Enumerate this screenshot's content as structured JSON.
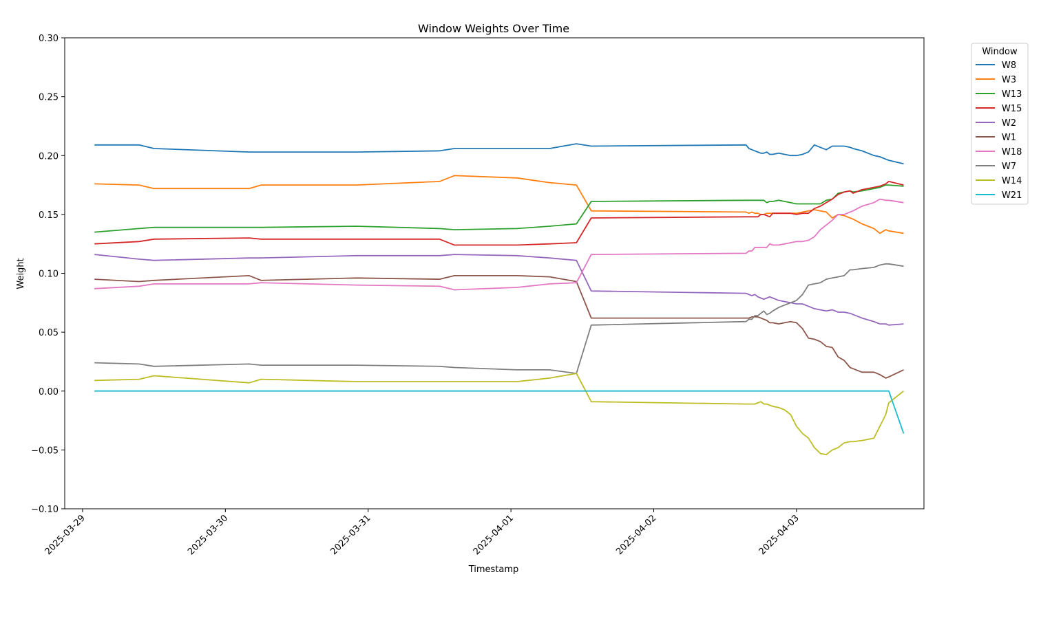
{
  "chart_data": {
    "type": "line",
    "title": "Window Weights Over Time",
    "xlabel": "Timestamp",
    "ylabel": "Weight",
    "ylim": [
      -0.1,
      0.3
    ],
    "xlim": [
      "2025-03-28T21:00",
      "2025-04-03T21:25"
    ],
    "yticks": [
      "−0.10",
      "−0.05",
      "0.00",
      "0.05",
      "0.10",
      "0.15",
      "0.20",
      "0.25",
      "0.30"
    ],
    "xticks": [
      "2025-03-29",
      "2025-03-30",
      "2025-03-31",
      "2025-04-01",
      "2025-04-02",
      "2025-04-03"
    ],
    "grid": false,
    "legend": {
      "title": "Window",
      "placement": "outside-top-right"
    },
    "x": [
      "2025-03-29T02:00",
      "2025-03-29T09:30",
      "2025-03-29T12:00",
      "2025-03-30T04:00",
      "2025-03-30T06:00",
      "2025-03-30T22:00",
      "2025-03-31T12:00",
      "2025-03-31T14:30",
      "2025-04-01T01:00",
      "2025-04-01T06:30",
      "2025-04-01T11:00",
      "2025-04-01T13:30",
      "2025-04-02T15:30",
      "2025-04-02T16:00",
      "2025-04-02T16:30",
      "2025-04-02T17:00",
      "2025-04-02T17:30",
      "2025-04-02T18:00",
      "2025-04-02T18:30",
      "2025-04-02T19:00",
      "2025-04-02T19:30",
      "2025-04-02T20:00",
      "2025-04-02T21:00",
      "2025-04-02T22:00",
      "2025-04-02T23:00",
      "2025-04-03T00:00",
      "2025-04-03T01:00",
      "2025-04-03T02:00",
      "2025-04-03T03:00",
      "2025-04-03T04:00",
      "2025-04-03T05:00",
      "2025-04-03T06:00",
      "2025-04-03T07:00",
      "2025-04-03T08:00",
      "2025-04-03T09:00",
      "2025-04-03T09:30",
      "2025-04-03T11:00",
      "2025-04-03T13:00",
      "2025-04-03T14:00",
      "2025-04-03T15:00",
      "2025-04-03T15:30",
      "2025-04-03T18:00"
    ],
    "series": [
      {
        "name": "W8",
        "color": "#1f77b4",
        "values": [
          0.209,
          0.209,
          0.206,
          0.203,
          0.203,
          0.203,
          0.204,
          0.206,
          0.206,
          0.206,
          0.21,
          0.208,
          0.209,
          0.206,
          0.205,
          0.204,
          0.203,
          0.202,
          0.202,
          0.203,
          0.201,
          0.201,
          0.202,
          0.201,
          0.2,
          0.2,
          0.201,
          0.203,
          0.209,
          0.207,
          0.205,
          0.208,
          0.208,
          0.208,
          0.207,
          0.206,
          0.204,
          0.2,
          0.199,
          0.197,
          0.196,
          0.193
        ]
      },
      {
        "name": "W3",
        "color": "#ff7f0e",
        "values": [
          0.176,
          0.175,
          0.172,
          0.172,
          0.175,
          0.175,
          0.178,
          0.183,
          0.181,
          0.177,
          0.175,
          0.153,
          0.152,
          0.151,
          0.152,
          0.151,
          0.151,
          0.15,
          0.15,
          0.151,
          0.151,
          0.151,
          0.151,
          0.151,
          0.151,
          0.151,
          0.152,
          0.153,
          0.154,
          0.153,
          0.152,
          0.147,
          0.15,
          0.149,
          0.147,
          0.146,
          0.142,
          0.138,
          0.134,
          0.137,
          0.136,
          0.134
        ]
      },
      {
        "name": "W13",
        "color": "#2ca02c",
        "values": [
          0.135,
          0.138,
          0.139,
          0.139,
          0.139,
          0.14,
          0.138,
          0.137,
          0.138,
          0.14,
          0.142,
          0.161,
          0.162,
          0.162,
          0.162,
          0.162,
          0.162,
          0.162,
          0.162,
          0.16,
          0.161,
          0.161,
          0.162,
          0.161,
          0.16,
          0.159,
          0.159,
          0.159,
          0.159,
          0.159,
          0.162,
          0.163,
          0.168,
          0.169,
          0.17,
          0.169,
          0.17,
          0.172,
          0.173,
          0.175,
          0.175,
          0.174
        ]
      },
      {
        "name": "W15",
        "color": "#d62728",
        "values": [
          0.125,
          0.127,
          0.129,
          0.13,
          0.129,
          0.129,
          0.129,
          0.124,
          0.124,
          0.125,
          0.126,
          0.147,
          0.148,
          0.148,
          0.148,
          0.148,
          0.148,
          0.15,
          0.15,
          0.149,
          0.148,
          0.151,
          0.151,
          0.151,
          0.151,
          0.15,
          0.151,
          0.151,
          0.155,
          0.157,
          0.16,
          0.163,
          0.167,
          0.169,
          0.17,
          0.168,
          0.171,
          0.173,
          0.174,
          0.176,
          0.178,
          0.175
        ]
      },
      {
        "name": "W2",
        "color": "#9467bd",
        "values": [
          0.116,
          0.112,
          0.111,
          0.113,
          0.113,
          0.115,
          0.115,
          0.116,
          0.115,
          0.113,
          0.111,
          0.085,
          0.083,
          0.082,
          0.081,
          0.082,
          0.08,
          0.079,
          0.078,
          0.079,
          0.08,
          0.079,
          0.077,
          0.076,
          0.075,
          0.074,
          0.074,
          0.072,
          0.07,
          0.069,
          0.068,
          0.069,
          0.067,
          0.067,
          0.066,
          0.065,
          0.062,
          0.059,
          0.057,
          0.057,
          0.056,
          0.057
        ]
      },
      {
        "name": "W1",
        "color": "#8c564b",
        "values": [
          0.095,
          0.093,
          0.094,
          0.098,
          0.094,
          0.096,
          0.095,
          0.098,
          0.098,
          0.097,
          0.093,
          0.062,
          0.062,
          0.062,
          0.063,
          0.063,
          0.063,
          0.062,
          0.061,
          0.06,
          0.058,
          0.058,
          0.057,
          0.058,
          0.059,
          0.058,
          0.053,
          0.045,
          0.044,
          0.042,
          0.038,
          0.037,
          0.029,
          0.026,
          0.02,
          0.019,
          0.016,
          0.016,
          0.014,
          0.011,
          0.012,
          0.018
        ]
      },
      {
        "name": "W18",
        "color": "#e377c2",
        "values": [
          0.087,
          0.089,
          0.091,
          0.091,
          0.092,
          0.09,
          0.089,
          0.086,
          0.088,
          0.091,
          0.092,
          0.116,
          0.117,
          0.119,
          0.119,
          0.122,
          0.122,
          0.122,
          0.122,
          0.122,
          0.125,
          0.124,
          0.124,
          0.125,
          0.126,
          0.127,
          0.127,
          0.128,
          0.131,
          0.137,
          0.141,
          0.145,
          0.15,
          0.15,
          0.152,
          0.153,
          0.157,
          0.16,
          0.163,
          0.162,
          0.162,
          0.16
        ]
      },
      {
        "name": "W7",
        "color": "#7f7f7f",
        "values": [
          0.024,
          0.023,
          0.021,
          0.023,
          0.022,
          0.022,
          0.021,
          0.02,
          0.018,
          0.018,
          0.015,
          0.056,
          0.059,
          0.061,
          0.061,
          0.064,
          0.064,
          0.066,
          0.068,
          0.065,
          0.066,
          0.068,
          0.071,
          0.073,
          0.075,
          0.077,
          0.082,
          0.09,
          0.091,
          0.092,
          0.095,
          0.096,
          0.097,
          0.098,
          0.103,
          0.103,
          0.104,
          0.105,
          0.107,
          0.108,
          0.108,
          0.106
        ]
      },
      {
        "name": "W14",
        "color": "#bcbd22",
        "values": [
          0.009,
          0.01,
          0.013,
          0.007,
          0.01,
          0.008,
          0.008,
          0.008,
          0.008,
          0.011,
          0.015,
          -0.009,
          -0.011,
          -0.011,
          -0.011,
          -0.011,
          -0.01,
          -0.009,
          -0.011,
          -0.011,
          -0.012,
          -0.013,
          -0.014,
          -0.016,
          -0.02,
          -0.03,
          -0.036,
          -0.04,
          -0.048,
          -0.053,
          -0.054,
          -0.05,
          -0.048,
          -0.044,
          -0.043,
          -0.043,
          -0.042,
          -0.04,
          -0.03,
          -0.02,
          -0.01,
          0.0
        ]
      },
      {
        "name": "W21",
        "color": "#17becf",
        "values": [
          0.0,
          0.0,
          0.0,
          0.0,
          0.0,
          0.0,
          0.0,
          0.0,
          0.0,
          0.0,
          0.0,
          0.0,
          0.0,
          0.0,
          0.0,
          0.0,
          0.0,
          0.0,
          0.0,
          0.0,
          0.0,
          0.0,
          0.0,
          0.0,
          0.0,
          0.0,
          0.0,
          0.0,
          0.0,
          0.0,
          0.0,
          0.0,
          0.0,
          0.0,
          0.0,
          0.0,
          0.0,
          0.0,
          0.0,
          0.0,
          0.0,
          -0.036
        ]
      }
    ]
  }
}
